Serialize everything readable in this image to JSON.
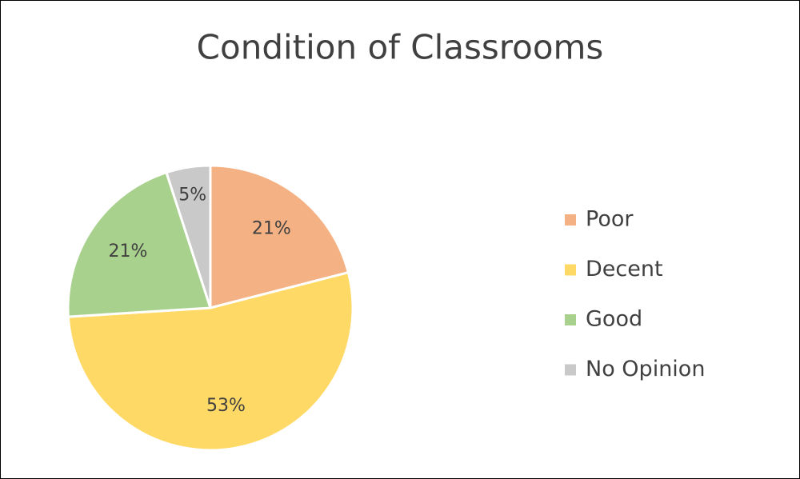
{
  "chart_data": {
    "type": "pie",
    "title": "Condition of Classrooms",
    "categories": [
      "Poor",
      "Decent",
      "Good",
      "No Opinion"
    ],
    "values": [
      21,
      53,
      21,
      5
    ],
    "value_labels": [
      "21%",
      "53%",
      "21%",
      "5%"
    ],
    "colors": [
      "#F4B183",
      "#FFD966",
      "#A9D18E",
      "#C9C9C9"
    ],
    "legend": "right"
  }
}
